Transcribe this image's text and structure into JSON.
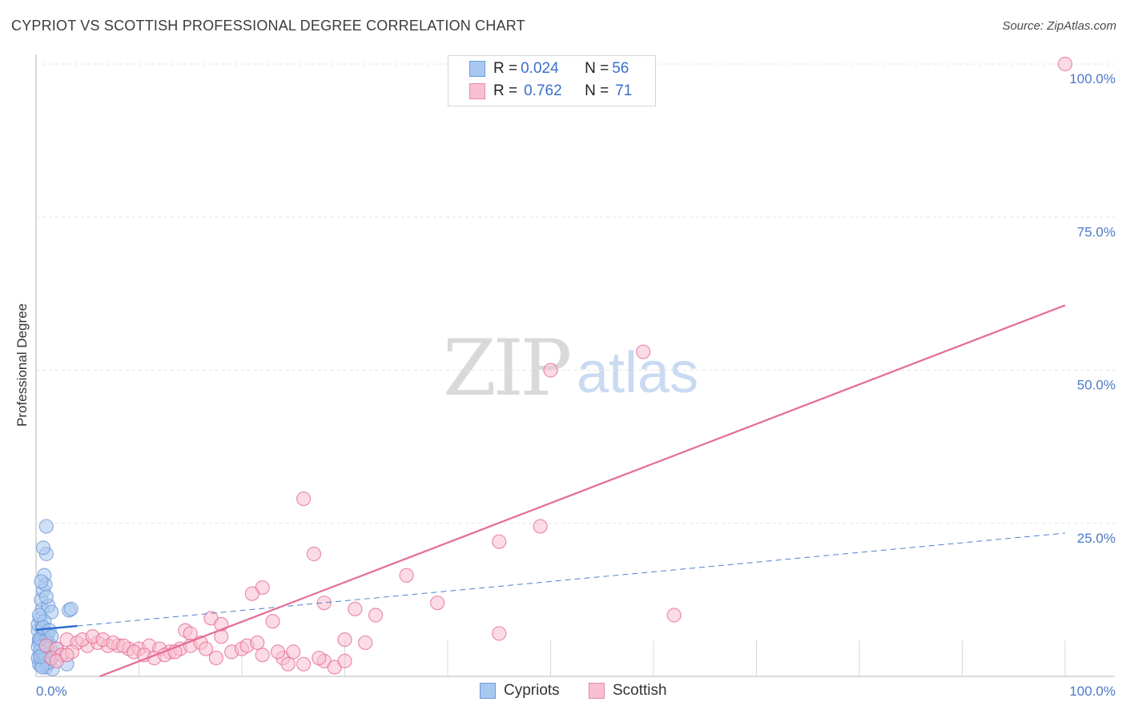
{
  "header": {
    "title": "CYPRIOT VS SCOTTISH PROFESSIONAL DEGREE CORRELATION CHART",
    "source": "Source: ZipAtlas.com"
  },
  "watermark": {
    "zip": "ZIP",
    "atlas": "atlas"
  },
  "legend": {
    "rows": [
      {
        "r_label": "R = ",
        "r_value": "0.024",
        "n_label": "N = ",
        "n_value": "56",
        "color": "#a9c8f0",
        "border": "#6f9ad6"
      },
      {
        "r_label": "R = ",
        "r_value": "0.762",
        "n_label": "N = ",
        "n_value": "71",
        "color": "#f8c0d0",
        "border": "#e88aa6"
      }
    ]
  },
  "bottom_legend": [
    {
      "label": "Cypriots",
      "color": "#a9c8f0",
      "border": "#6f9ad6"
    },
    {
      "label": "Scottish",
      "color": "#f8c0d0",
      "border": "#e88aa6"
    }
  ],
  "chart_data": {
    "type": "scatter",
    "title": "CYPRIOT VS SCOTTISH PROFESSIONAL DEGREE CORRELATION CHART",
    "xlabel": "",
    "ylabel": "Professional Degree",
    "xlim": [
      0,
      100
    ],
    "ylim": [
      0,
      100
    ],
    "x_tick_labels": [
      "0.0%",
      "100.0%"
    ],
    "y_tick_labels": [
      "25.0%",
      "50.0%",
      "75.0%",
      "100.0%"
    ],
    "y_ticks": [
      25,
      50,
      75,
      100
    ],
    "series": [
      {
        "name": "Cypriots",
        "color": "#6f9ad6",
        "fill": "#a9c8f0",
        "trend": {
          "x0": 0,
          "y0": 7.6,
          "x1": 100,
          "y1": 23.4,
          "solid_until": 4
        },
        "points": [
          [
            0.2,
            7.5
          ],
          [
            0.3,
            6.0
          ],
          [
            0.5,
            4.5
          ],
          [
            0.4,
            3.5
          ],
          [
            0.6,
            2.5
          ],
          [
            0.8,
            2.0
          ],
          [
            1.0,
            1.5
          ],
          [
            0.2,
            8.5
          ],
          [
            0.4,
            9.5
          ],
          [
            0.6,
            11.0
          ],
          [
            0.5,
            12.5
          ],
          [
            0.7,
            14.0
          ],
          [
            0.9,
            15.0
          ],
          [
            0.8,
            16.5
          ],
          [
            1.0,
            20.0
          ],
          [
            0.7,
            21.0
          ],
          [
            1.0,
            24.5
          ],
          [
            1.2,
            11.5
          ],
          [
            1.5,
            10.5
          ],
          [
            0.3,
            5.5
          ],
          [
            0.5,
            5.0
          ],
          [
            0.9,
            4.0
          ],
          [
            1.1,
            3.0
          ],
          [
            1.3,
            2.5
          ],
          [
            1.6,
            1.2
          ],
          [
            0.2,
            3.0
          ],
          [
            0.4,
            4.2
          ],
          [
            0.6,
            6.5
          ],
          [
            0.8,
            7.0
          ],
          [
            1.0,
            6.0
          ],
          [
            1.2,
            5.5
          ],
          [
            1.4,
            4.8
          ],
          [
            0.3,
            2.0
          ],
          [
            0.5,
            1.8
          ],
          [
            0.7,
            3.8
          ],
          [
            0.9,
            5.2
          ],
          [
            1.1,
            6.8
          ],
          [
            0.2,
            4.8
          ],
          [
            0.4,
            6.2
          ],
          [
            0.6,
            7.8
          ],
          [
            3.2,
            10.8
          ],
          [
            3.4,
            11.0
          ],
          [
            3.0,
            2.0
          ],
          [
            0.8,
            9.0
          ],
          [
            1.0,
            13.0
          ],
          [
            0.5,
            15.5
          ],
          [
            0.3,
            10.0
          ],
          [
            0.7,
            8.0
          ],
          [
            1.3,
            7.5
          ],
          [
            1.5,
            6.5
          ],
          [
            0.9,
            2.8
          ],
          [
            1.1,
            2.2
          ],
          [
            0.6,
            1.5
          ],
          [
            0.4,
            3.2
          ],
          [
            1.8,
            3.6
          ],
          [
            2.0,
            4.5
          ]
        ]
      },
      {
        "name": "Scottish",
        "color": "#e56b93",
        "fill": "#f8c0d0",
        "trend": {
          "x0": 0,
          "y0": -4.0,
          "x1": 100,
          "y1": 60.6
        },
        "points": [
          [
            100,
            100
          ],
          [
            59,
            53
          ],
          [
            50,
            50
          ],
          [
            26,
            29
          ],
          [
            49,
            24.5
          ],
          [
            45,
            22
          ],
          [
            27,
            20
          ],
          [
            36,
            16.5
          ],
          [
            22,
            14.5
          ],
          [
            21,
            13.5
          ],
          [
            28,
            12
          ],
          [
            39,
            12
          ],
          [
            31,
            11
          ],
          [
            62,
            10
          ],
          [
            33,
            10
          ],
          [
            17,
            9.5
          ],
          [
            23,
            9
          ],
          [
            18,
            8.5
          ],
          [
            14.5,
            7.5
          ],
          [
            15,
            7
          ],
          [
            45,
            7
          ],
          [
            18,
            6.5
          ],
          [
            30,
            6
          ],
          [
            32,
            5.5
          ],
          [
            3,
            6
          ],
          [
            4,
            5.5
          ],
          [
            5,
            5
          ],
          [
            6,
            5.5
          ],
          [
            7,
            5
          ],
          [
            8,
            5
          ],
          [
            9,
            4.5
          ],
          [
            10,
            4.5
          ],
          [
            11,
            5
          ],
          [
            12,
            4.5
          ],
          [
            13,
            4
          ],
          [
            14,
            4.5
          ],
          [
            15,
            5
          ],
          [
            16,
            5.5
          ],
          [
            19,
            4
          ],
          [
            20,
            4.5
          ],
          [
            22,
            3.5
          ],
          [
            24,
            3
          ],
          [
            25,
            4
          ],
          [
            26,
            2
          ],
          [
            28,
            2.5
          ],
          [
            29,
            1.5
          ],
          [
            30,
            2.5
          ],
          [
            1,
            5
          ],
          [
            2,
            4.5
          ],
          [
            1.5,
            3
          ],
          [
            2.5,
            3.5
          ],
          [
            3.5,
            4
          ],
          [
            4.5,
            6
          ],
          [
            5.5,
            6.5
          ],
          [
            6.5,
            6
          ],
          [
            7.5,
            5.5
          ],
          [
            8.5,
            5
          ],
          [
            9.5,
            4
          ],
          [
            10.5,
            3.5
          ],
          [
            11.5,
            3
          ],
          [
            12.5,
            3.5
          ],
          [
            13.5,
            4
          ],
          [
            16.5,
            4.5
          ],
          [
            17.5,
            3
          ],
          [
            20.5,
            5
          ],
          [
            21.5,
            5.5
          ],
          [
            23.5,
            4
          ],
          [
            24.5,
            2
          ],
          [
            27.5,
            3
          ],
          [
            2,
            2.5
          ],
          [
            3,
            3.5
          ]
        ]
      }
    ]
  }
}
